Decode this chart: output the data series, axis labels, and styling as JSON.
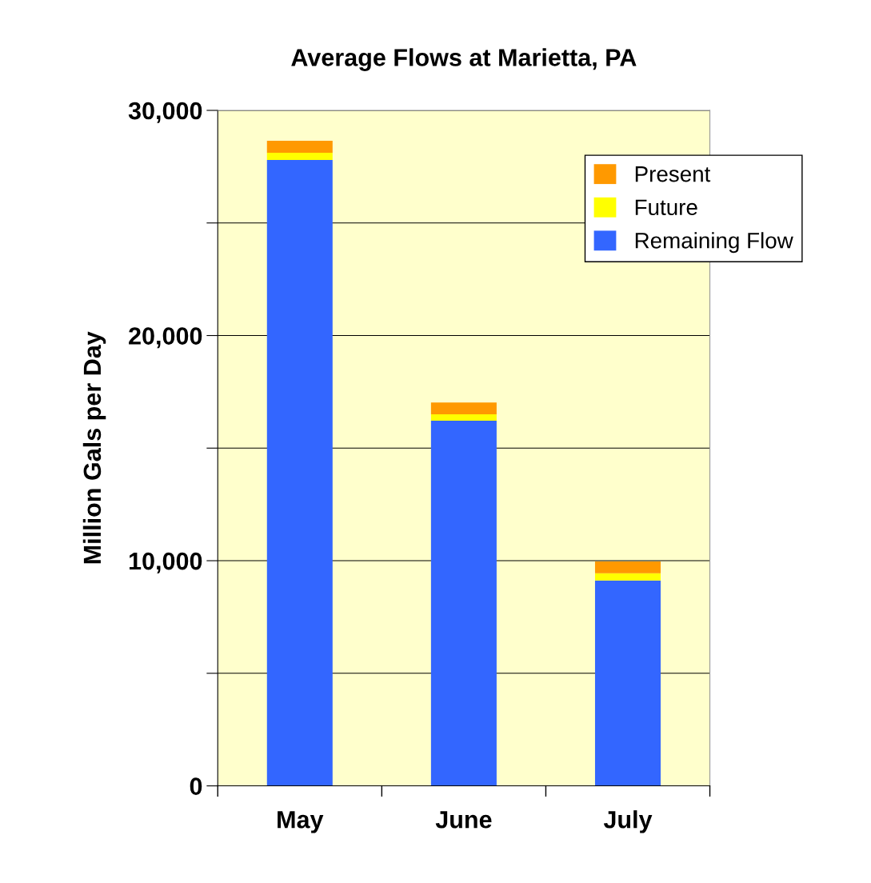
{
  "chart_data": {
    "type": "bar",
    "title": "Average Flows at Marietta, PA",
    "ylabel": "Million Gals per Day",
    "categories": [
      "May",
      "June",
      "July"
    ],
    "stacked": true,
    "series": [
      {
        "name": "Remaining Flow",
        "color": "#3366ff",
        "values": [
          27800,
          16220,
          9120
        ]
      },
      {
        "name": "Future",
        "color": "#ffff00",
        "values": [
          320,
          280,
          320
        ]
      },
      {
        "name": "Present",
        "color": "#ff9900",
        "values": [
          530,
          530,
          530
        ]
      }
    ],
    "ylim": [
      0,
      30000
    ],
    "yticks": [
      {
        "value": 0,
        "label": "0"
      },
      {
        "value": 5000,
        "label": null
      },
      {
        "value": 10000,
        "label": "10,000"
      },
      {
        "value": 15000,
        "label": null
      },
      {
        "value": 20000,
        "label": "20,000"
      },
      {
        "value": 25000,
        "label": null
      },
      {
        "value": 30000,
        "label": "30,000"
      }
    ],
    "grid": "y",
    "legend": "top right"
  }
}
